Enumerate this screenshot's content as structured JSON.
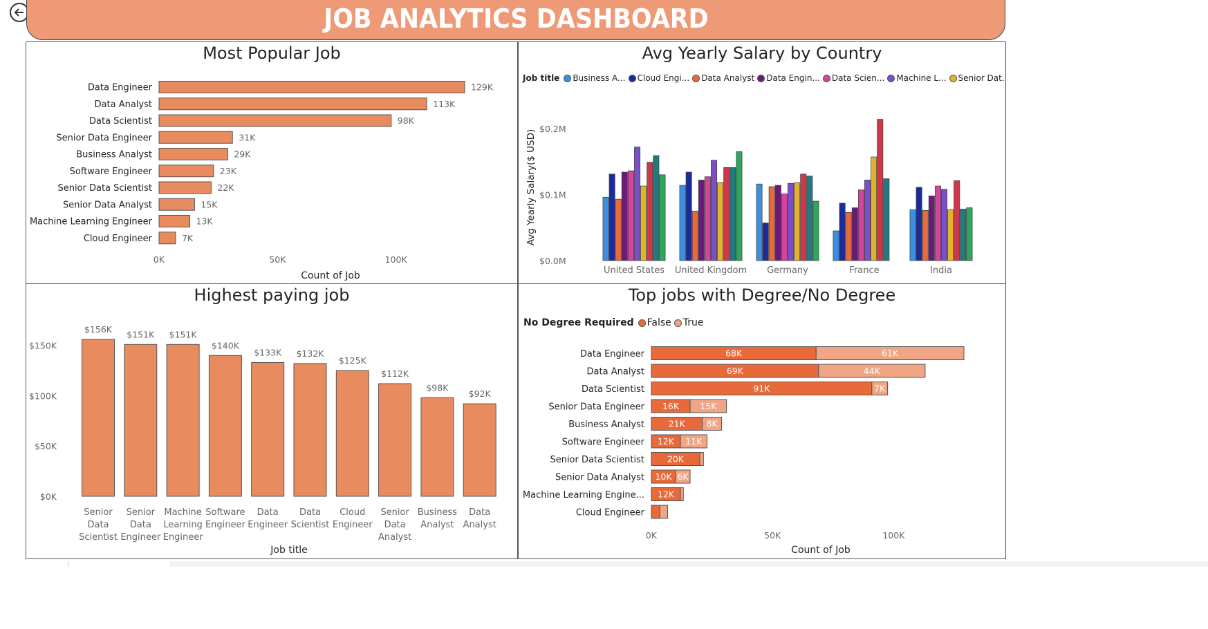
{
  "header": {
    "title": "JOB ANALYTICS DASHBOARD"
  },
  "colors": {
    "accent": "#ee9a77",
    "bar": "#e88c5f",
    "false": "#e8693a",
    "true": "#f0a584"
  },
  "icons": {
    "back": "back-arrow-icon",
    "legend_next": "chevron-right-icon"
  },
  "chart_data": [
    {
      "id": "popular",
      "type": "bar",
      "orientation": "horizontal",
      "title": "Most Popular Job",
      "xlabel": "Count of Job",
      "ylabel": "",
      "categories": [
        "Data Engineer",
        "Data Analyst",
        "Data Scientist",
        "Senior Data Engineer",
        "Business Analyst",
        "Software Engineer",
        "Senior Data Scientist",
        "Senior Data Analyst",
        "Machine Learning Engineer",
        "Cloud Engineer"
      ],
      "values": [
        129000,
        113000,
        98000,
        31000,
        29000,
        23000,
        22000,
        15000,
        13000,
        7000
      ],
      "labels": [
        "129K",
        "113K",
        "98K",
        "31K",
        "29K",
        "23K",
        "22K",
        "15K",
        "13K",
        "7K"
      ],
      "xlim": [
        0,
        129000
      ],
      "ticks": [
        0,
        50000,
        100000
      ],
      "tick_labels": [
        "0K",
        "50K",
        "100K"
      ]
    },
    {
      "id": "salary_country",
      "type": "bar",
      "orientation": "vertical-clustered",
      "title": "Avg Yearly Salary by Country",
      "xlabel": "",
      "ylabel": "Avg Yearly Salary($ USD)",
      "legend_title": "Job title",
      "legend": [
        {
          "label": "Business A...",
          "color": "#3b8fe4"
        },
        {
          "label": "Cloud Engi...",
          "color": "#1c2b9c"
        },
        {
          "label": "Data Analyst",
          "color": "#e8693a"
        },
        {
          "label": "Data Engin...",
          "color": "#6a1b79"
        },
        {
          "label": "Data Scien...",
          "color": "#d6439c"
        },
        {
          "label": "Machine L...",
          "color": "#7a4fc9"
        },
        {
          "label": "Senior Dat...",
          "color": "#e3b22d"
        }
      ],
      "series_colors": [
        "#3b8fe4",
        "#1c2b9c",
        "#e8693a",
        "#6a1b79",
        "#d6439c",
        "#7a4fc9",
        "#e3b22d",
        "#d0384a",
        "#22797f",
        "#2ba85c"
      ],
      "categories": [
        "United States",
        "United Kingdom",
        "Germany",
        "France",
        "India"
      ],
      "values": [
        [
          96000,
          131000,
          93000,
          134000,
          136000,
          172000,
          113000,
          149000,
          159000,
          130000
        ],
        [
          114000,
          134000,
          75000,
          122000,
          127000,
          152000,
          118000,
          141000,
          141000,
          165000
        ],
        [
          116000,
          57000,
          112000,
          114000,
          101000,
          117000,
          118000,
          131000,
          128000,
          90000
        ],
        [
          45000,
          87000,
          73000,
          80000,
          107000,
          122000,
          157000,
          214000,
          124000,
          null
        ],
        [
          77000,
          111000,
          76000,
          98000,
          113000,
          108000,
          77000,
          121000,
          78000,
          80000
        ]
      ],
      "ylim": [
        0,
        200000
      ],
      "ticks": [
        0,
        100000,
        200000
      ],
      "tick_labels": [
        "$0.0M",
        "$0.1M",
        "$0.2M"
      ]
    },
    {
      "id": "highest_paying",
      "type": "bar",
      "orientation": "vertical",
      "title": "Highest paying job",
      "xlabel": "Job title",
      "ylabel": "",
      "categories": [
        [
          "Senior",
          "Data",
          "Scientist"
        ],
        [
          "Senior",
          "Data",
          "Engineer"
        ],
        [
          "Machine",
          "Learning",
          "Engineer"
        ],
        [
          "Software",
          "Engineer"
        ],
        [
          "Data",
          "Engineer"
        ],
        [
          "Data",
          "Scientist"
        ],
        [
          "Cloud",
          "Engineer"
        ],
        [
          "Senior",
          "Data",
          "Analyst"
        ],
        [
          "Business",
          "Analyst"
        ],
        [
          "Data",
          "Analyst"
        ]
      ],
      "values": [
        156000,
        151000,
        151000,
        140000,
        133000,
        132000,
        125000,
        112000,
        98000,
        92000
      ],
      "labels": [
        "$156K",
        "$151K",
        "$151K",
        "$140K",
        "$133K",
        "$132K",
        "$125K",
        "$112K",
        "$98K",
        "$92K"
      ],
      "ylim": [
        0,
        156000
      ],
      "ticks": [
        0,
        50000,
        100000,
        150000
      ],
      "tick_labels": [
        "$0K",
        "$50K",
        "$100K",
        "$150K"
      ]
    },
    {
      "id": "degree",
      "type": "bar",
      "orientation": "horizontal-stacked",
      "title": "Top jobs with Degree/No Degree",
      "xlabel": "Count of Job",
      "ylabel": "",
      "legend_title": "No Degree Required",
      "categories": [
        "Data Engineer",
        "Data Analyst",
        "Data Scientist",
        "Senior Data Engineer",
        "Business Analyst",
        "Software Engineer",
        "Senior Data Scientist",
        "Senior Data Analyst",
        "Machine Learning Engine...",
        "Cloud Engineer"
      ],
      "series": [
        {
          "name": "False",
          "values": [
            68000,
            69000,
            91000,
            16000,
            21000,
            12000,
            20000,
            10000,
            12000,
            3500
          ],
          "labels": [
            "68K",
            "69K",
            "91K",
            "16K",
            "21K",
            "12K",
            "20K",
            "10K",
            "12K",
            ""
          ]
        },
        {
          "name": "True",
          "values": [
            61000,
            44000,
            6500,
            15000,
            8000,
            11000,
            1500,
            6000,
            1200,
            3200
          ],
          "labels": [
            "61K",
            "44K",
            "7K",
            "15K",
            "8K",
            "11K",
            "",
            "6K",
            "",
            ""
          ]
        }
      ],
      "xlim": [
        0,
        129000
      ],
      "ticks": [
        0,
        50000,
        100000
      ],
      "tick_labels": [
        "0K",
        "50K",
        "100K"
      ]
    }
  ]
}
